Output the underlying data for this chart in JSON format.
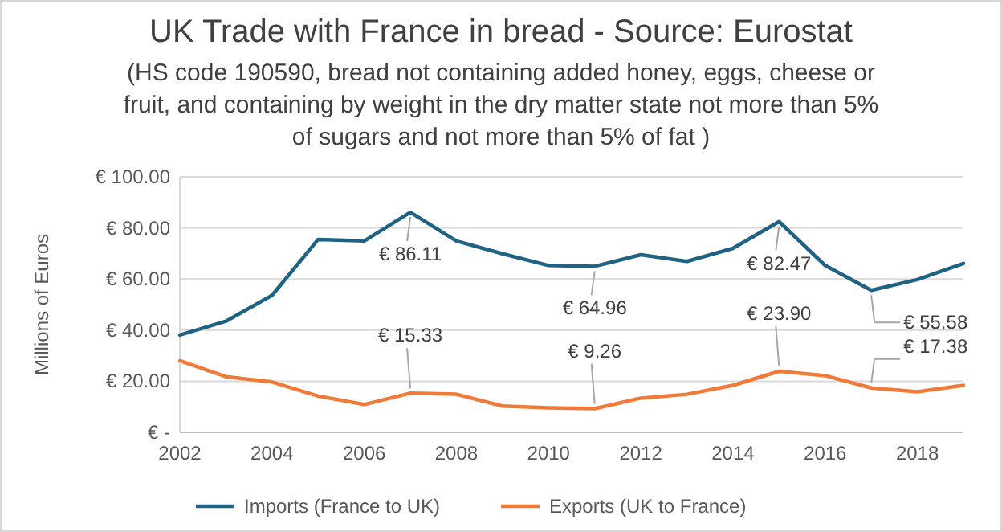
{
  "chart_data": {
    "type": "line",
    "title": "UK Trade with France in bread - Source: Eurostat",
    "subtitle": "(HS code 190590, bread not containing added honey, eggs, cheese or fruit, and containing by weight in the dry matter state not more than 5% of sugars and not more than 5% of fat )",
    "ylabel": "Millions  of Euros",
    "x": [
      2002,
      2003,
      2004,
      2005,
      2006,
      2007,
      2008,
      2009,
      2010,
      2011,
      2012,
      2013,
      2014,
      2015,
      2016,
      2017,
      2018,
      2019
    ],
    "xlim": [
      2002,
      2019
    ],
    "xticks": [
      2002,
      2004,
      2006,
      2008,
      2010,
      2012,
      2014,
      2016,
      2018
    ],
    "ylim": [
      0,
      100
    ],
    "yticks": [
      {
        "value": 0,
        "label": "€ -"
      },
      {
        "value": 20,
        "label": "€ 20.00"
      },
      {
        "value": 40,
        "label": "€ 40.00"
      },
      {
        "value": 60,
        "label": "€ 60.00"
      },
      {
        "value": 80,
        "label": "€ 80.00"
      },
      {
        "value": 100,
        "label": "€ 100.00"
      }
    ],
    "grid": "y",
    "legend": "bottom",
    "marker": "none",
    "line_style": "solid",
    "series": [
      {
        "name": "Imports (France to UK)",
        "color": "#1f6283",
        "values": [
          38.1,
          43.5,
          53.6,
          75.5,
          74.9,
          86.11,
          74.9,
          69.9,
          65.3,
          64.96,
          69.5,
          66.9,
          72.0,
          82.47,
          65.3,
          55.58,
          59.8,
          66.1
        ],
        "value_labels": [
          null,
          null,
          null,
          null,
          null,
          "€ 86.11",
          null,
          null,
          null,
          "€ 64.96",
          null,
          null,
          null,
          "€ 82.47",
          null,
          "€ 55.58",
          null,
          null
        ]
      },
      {
        "name": "Exports (UK to France)",
        "color": "#f07a37",
        "values": [
          28.0,
          21.8,
          19.7,
          14.2,
          10.9,
          15.33,
          14.9,
          10.3,
          9.6,
          9.26,
          13.4,
          14.9,
          18.4,
          23.9,
          22.2,
          17.38,
          15.9,
          18.4
        ],
        "value_labels": [
          null,
          null,
          null,
          null,
          null,
          "€ 15.33",
          null,
          null,
          null,
          "€ 9.26",
          null,
          null,
          null,
          "€ 23.90",
          null,
          "€ 17.38",
          null,
          null
        ]
      }
    ]
  }
}
